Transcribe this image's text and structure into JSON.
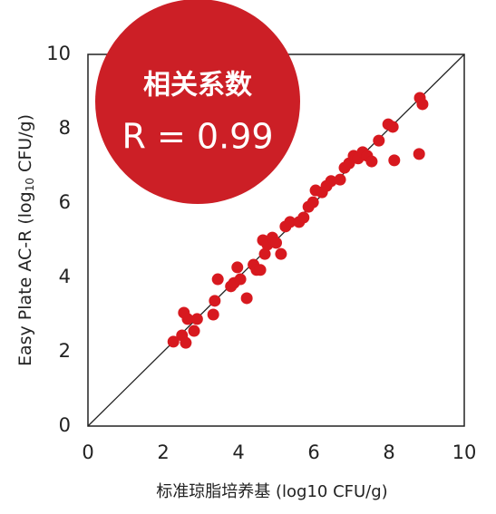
{
  "chart_data": {
    "type": "scatter",
    "x": [
      2.27,
      2.5,
      2.55,
      2.6,
      2.65,
      2.82,
      2.9,
      3.33,
      3.37,
      3.45,
      3.8,
      3.88,
      3.97,
      4.05,
      4.22,
      4.4,
      4.48,
      4.58,
      4.65,
      4.7,
      4.77,
      4.9,
      5.0,
      5.13,
      5.25,
      5.37,
      5.61,
      5.73,
      5.86,
      5.98,
      6.05,
      6.22,
      6.34,
      6.46,
      6.7,
      6.82,
      6.94,
      7.06,
      7.18,
      7.3,
      7.42,
      7.54,
      7.73,
      7.98,
      8.1,
      8.14,
      8.8,
      8.82,
      8.89
    ],
    "y": [
      2.27,
      2.44,
      3.05,
      2.24,
      2.88,
      2.56,
      2.88,
      3.0,
      3.37,
      3.95,
      3.76,
      3.85,
      4.27,
      3.95,
      3.44,
      4.34,
      4.2,
      4.2,
      5.0,
      4.63,
      4.88,
      5.07,
      4.93,
      4.63,
      5.37,
      5.49,
      5.49,
      5.61,
      5.9,
      6.02,
      6.34,
      6.29,
      6.46,
      6.59,
      6.63,
      6.95,
      7.07,
      7.27,
      7.2,
      7.37,
      7.27,
      7.12,
      7.68,
      8.12,
      8.05,
      7.15,
      7.32,
      8.83,
      8.66
    ],
    "color": "#d7191f",
    "xlim": [
      0,
      10
    ],
    "ylim": [
      0,
      10
    ],
    "xticks": [
      0,
      2,
      4,
      6,
      8,
      10
    ],
    "yticks": [
      0,
      2,
      4,
      6,
      8,
      10
    ],
    "x_label": "标准琼脂培养基 (log10 CFU/g)",
    "y_label": [
      "Easy Plate AC-R (log",
      "10",
      " CFU/g)"
    ],
    "annotations": [
      "相关系数",
      "R = 0.99"
    ],
    "badge_color": "#cc1f26"
  }
}
